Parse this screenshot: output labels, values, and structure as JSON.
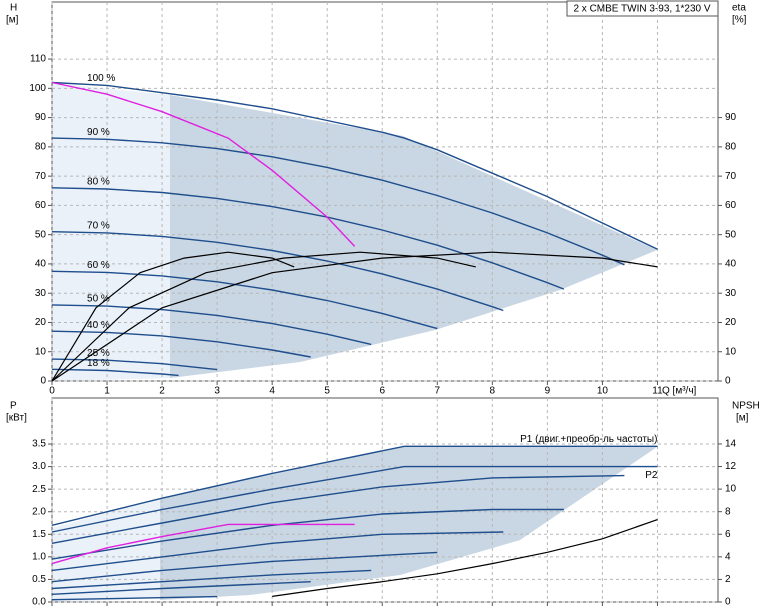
{
  "chart_data": [
    {
      "type": "line",
      "title": "2 x CMBE TWIN 3-93, 1*230 V",
      "ylabel": "H",
      "yunit": "[м]",
      "y2label": "eta",
      "y2unit": "[%]",
      "xlabel": "Q [м³/ч]",
      "xlim": [
        0,
        12.1
      ],
      "ylim": [
        0,
        129.5
      ],
      "y2lim": [
        0,
        129.5
      ],
      "xticks": [
        0,
        1,
        2,
        3,
        4,
        5,
        6,
        7,
        8,
        9,
        10,
        11
      ],
      "yticks": [
        0,
        10,
        20,
        30,
        40,
        50,
        60,
        70,
        80,
        90,
        100,
        110
      ],
      "y2ticks": [
        0,
        10,
        20,
        30,
        40,
        50,
        60,
        70,
        80,
        90
      ],
      "grid": true,
      "series": [
        {
          "name": "100 %",
          "color": "#1f4e8c",
          "x": [
            0,
            1,
            2,
            3,
            4,
            5,
            6,
            6.4,
            7,
            8,
            9,
            10,
            11
          ],
          "values": [
            102,
            101,
            98.5,
            96,
            93,
            89,
            85,
            83,
            79,
            71,
            63,
            54,
            45
          ]
        },
        {
          "name": "90 %",
          "color": "#1f4e8c",
          "x": [
            0,
            1,
            2,
            3,
            4,
            5,
            6,
            7,
            8,
            9,
            10,
            10.4
          ],
          "values": [
            83,
            82.6,
            81.4,
            79.4,
            76.6,
            73,
            68.6,
            63.4,
            57.4,
            50.6,
            43,
            39.7
          ]
        },
        {
          "name": "80 %",
          "color": "#1f4e8c",
          "x": [
            0,
            1,
            2,
            3,
            4,
            5,
            6,
            7,
            8,
            9,
            9.3
          ],
          "values": [
            66,
            65.6,
            64.4,
            62.4,
            59.6,
            56,
            51.6,
            46.4,
            40.4,
            33.6,
            31.4
          ]
        },
        {
          "name": "70 %",
          "color": "#1f4e8c",
          "x": [
            0,
            1,
            2,
            3,
            4,
            5,
            6,
            7,
            8,
            8.2
          ],
          "values": [
            51,
            50.6,
            49.4,
            47.4,
            44.6,
            41,
            36.6,
            31.4,
            25.4,
            24.1
          ]
        },
        {
          "name": "60 %",
          "color": "#1f4e8c",
          "x": [
            0,
            1,
            2,
            3,
            4,
            5,
            6,
            7
          ],
          "values": [
            37.5,
            37.1,
            35.9,
            33.9,
            31.1,
            27.5,
            23.1,
            17.9
          ]
        },
        {
          "name": "50 %",
          "color": "#1f4e8c",
          "x": [
            0,
            1,
            2,
            3,
            4,
            5,
            5.8
          ],
          "values": [
            26,
            25.6,
            24.4,
            22.4,
            19.6,
            16,
            12.5
          ]
        },
        {
          "name": "40 %",
          "color": "#1f4e8c",
          "x": [
            0,
            1,
            2,
            3,
            4,
            4.7
          ],
          "values": [
            17,
            16.6,
            15.4,
            13.4,
            10.6,
            8.2
          ]
        },
        {
          "name": "25 %",
          "color": "#1f4e8c",
          "x": [
            0,
            1,
            2,
            3
          ],
          "values": [
            7.5,
            7.1,
            5.9,
            3.9
          ]
        },
        {
          "name": "18 %",
          "color": "#1f4e8c",
          "x": [
            0,
            1,
            2,
            2.3
          ],
          "values": [
            4,
            3.6,
            2.4,
            1.9
          ]
        },
        {
          "color": "#e020e0",
          "x": [
            0,
            1,
            2,
            3.2,
            4,
            5,
            5.5
          ],
          "values": [
            102,
            98,
            92,
            83,
            72,
            56,
            46
          ]
        },
        {
          "color": "#000000",
          "axis": "y2",
          "x": [
            0,
            2,
            4,
            6,
            8,
            10,
            11
          ],
          "values": [
            0,
            25,
            37,
            42,
            44,
            42,
            39
          ]
        },
        {
          "color": "#000000",
          "axis": "y2",
          "x": [
            0,
            1.4,
            2.8,
            4.2,
            5.6,
            7,
            7.7
          ],
          "values": [
            0,
            25,
            37,
            42,
            44,
            42,
            39
          ]
        },
        {
          "color": "#000000",
          "axis": "y2",
          "x": [
            0,
            0.8,
            1.6,
            2.4,
            3.2,
            4,
            4.4
          ],
          "values": [
            0,
            25,
            37,
            42,
            44,
            42,
            39
          ]
        }
      ]
    },
    {
      "type": "line",
      "ylabel": "P",
      "yunit": "[кВт]",
      "y2label": "NPSH",
      "y2unit": "[м]",
      "xlim": [
        0,
        12.1
      ],
      "ylim": [
        0,
        4.52
      ],
      "y2lim": [
        0,
        18.07
      ],
      "yticks": [
        {
          "value": 0,
          "label": "0.0"
        },
        0.5,
        {
          "value": 1,
          "label": "1.0"
        },
        1.5,
        {
          "value": 2,
          "label": "2.0"
        },
        2.5,
        {
          "value": 3,
          "label": "3.0"
        },
        3.5
      ],
      "y2ticks": [
        0,
        2,
        4,
        6,
        8,
        10,
        12,
        14
      ],
      "grid": true,
      "series": [
        {
          "name": "P1 (двиг.+преобр-ль частоты)",
          "color": "#1f4e8c",
          "x": [
            0,
            2,
            4,
            6.4,
            8,
            11
          ],
          "values": [
            1.7,
            2.3,
            2.85,
            3.45,
            3.45,
            3.45
          ]
        },
        {
          "name": "P2",
          "color": "#1f4e8c",
          "x": [
            0,
            2,
            4,
            6.4,
            8,
            11
          ],
          "values": [
            1.55,
            2.05,
            2.5,
            3.0,
            3.0,
            3.0
          ]
        },
        {
          "color": "#1f4e8c",
          "x": [
            0,
            2,
            4,
            6,
            8,
            10.4
          ],
          "values": [
            1.3,
            1.75,
            2.2,
            2.55,
            2.75,
            2.8
          ]
        },
        {
          "color": "#1f4e8c",
          "x": [
            0,
            2,
            4,
            6,
            8,
            9.3
          ],
          "values": [
            0.95,
            1.35,
            1.7,
            1.95,
            2.05,
            2.05
          ]
        },
        {
          "color": "#1f4e8c",
          "x": [
            0,
            2,
            4,
            6,
            8.2
          ],
          "values": [
            0.7,
            1.0,
            1.3,
            1.5,
            1.55
          ]
        },
        {
          "color": "#1f4e8c",
          "x": [
            0,
            2,
            4,
            7
          ],
          "values": [
            0.45,
            0.7,
            0.9,
            1.1
          ]
        },
        {
          "color": "#1f4e8c",
          "x": [
            0,
            2,
            4,
            5.8
          ],
          "values": [
            0.3,
            0.45,
            0.6,
            0.7
          ]
        },
        {
          "color": "#1f4e8c",
          "x": [
            0,
            2,
            4.7
          ],
          "values": [
            0.17,
            0.3,
            0.45
          ]
        },
        {
          "color": "#1f4e8c",
          "x": [
            0,
            3
          ],
          "values": [
            0.05,
            0.12
          ]
        },
        {
          "color": "#e020e0",
          "x": [
            0,
            1,
            2,
            3.2,
            5.5
          ],
          "values": [
            0.85,
            1.2,
            1.45,
            1.72,
            1.72
          ]
        },
        {
          "color": "#000000",
          "axis": "y2",
          "x": [
            4,
            5,
            6,
            7,
            8,
            9,
            10,
            11
          ],
          "values": [
            0.5,
            1.2,
            1.8,
            2.5,
            3.4,
            4.4,
            5.6,
            7.3
          ]
        }
      ]
    }
  ]
}
